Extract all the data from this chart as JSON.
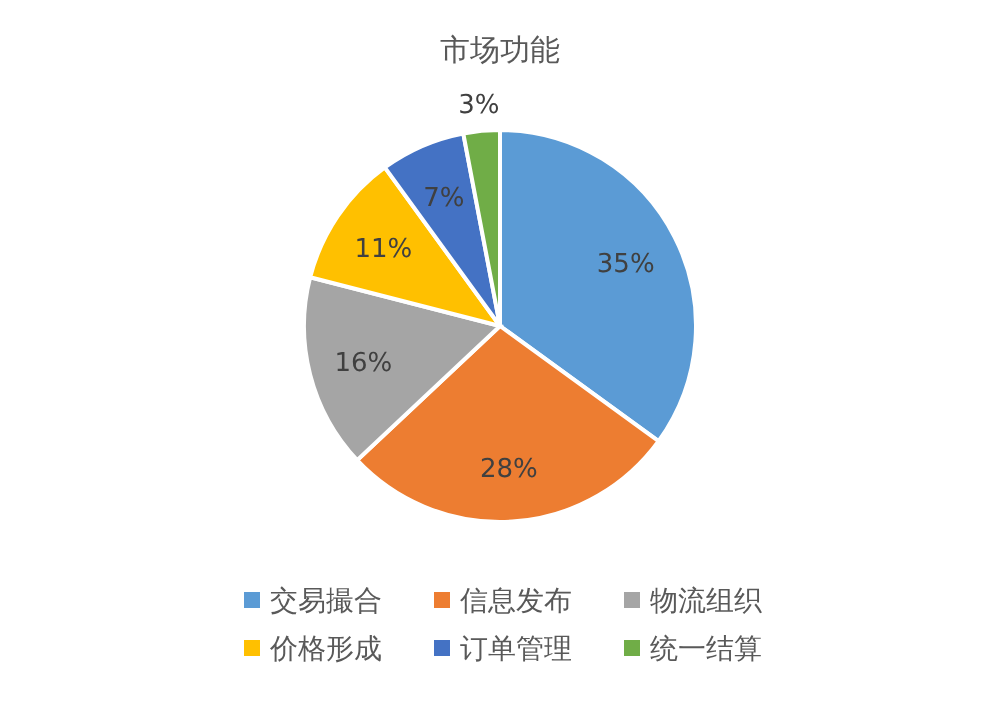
{
  "chart_data": {
    "type": "pie",
    "title": "市场功能",
    "categories": [
      "交易撮合",
      "信息发布",
      "物流组织",
      "价格形成",
      "订单管理",
      "统一结算"
    ],
    "values": [
      35,
      28,
      16,
      11,
      7,
      3
    ],
    "colors": [
      "#5b9bd5",
      "#ed7d31",
      "#a5a5a5",
      "#ffc000",
      "#4472c4",
      "#70ad47"
    ],
    "value_labels": [
      "35%",
      "28%",
      "16%",
      "11%",
      "7%",
      "3%"
    ],
    "legend": "bottom"
  }
}
